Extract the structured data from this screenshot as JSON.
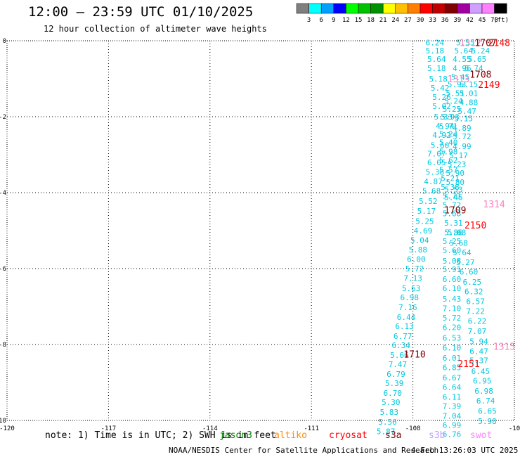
{
  "header": {
    "title": "12:00 – 23:59 UTC 01/10/2025",
    "subtitle": "12 hour collection of altimeter wave heights"
  },
  "color_scale": {
    "labels": [
      "3",
      "6",
      "9",
      "12",
      "15",
      "18",
      "21",
      "24",
      "27",
      "30",
      "33",
      "36",
      "39",
      "42",
      "45",
      "70"
    ],
    "unit": "(ft)",
    "colors": [
      "#7f7f7f",
      "#00ffff",
      "#00a0ff",
      "#0000ff",
      "#00ff00",
      "#00c000",
      "#009000",
      "#ffff00",
      "#ffc000",
      "#ff8000",
      "#ff0000",
      "#c00000",
      "#800000",
      "#a000a0",
      "#d0a0ff",
      "#ff80ff",
      "#000000"
    ]
  },
  "footer": {
    "note": "note: 1) Time is in UTC; 2) SWH is in feet",
    "credit": "NOAA/NESDIS Center for Satellite Applications and Research",
    "generated": "4 Feb 13:26:03 UTC 2025",
    "satellites": [
      {
        "name": "jason3",
        "color": "#008000"
      },
      {
        "name": "altiko",
        "color": "#ff8c00"
      },
      {
        "name": "cryosat",
        "color": "#ff0000"
      },
      {
        "name": "s3a",
        "color": "#800000"
      },
      {
        "name": "s3b",
        "color": "#c0a0ff"
      },
      {
        "name": "swot",
        "color": "#ff80ff"
      }
    ]
  },
  "chart_data": {
    "type": "scatter",
    "title": "12 hour collection of altimeter wave heights",
    "x_ticks": [
      "-120",
      "-117",
      "-114",
      "-111",
      "-108",
      "-10"
    ],
    "y_ticks": [
      "0",
      "-2",
      "-4",
      "-6",
      "-8",
      "-10"
    ],
    "xlim": [
      -120,
      -105
    ],
    "ylim": [
      -10,
      0
    ],
    "grid": true,
    "colors": {
      "track_a": "#00c8e0",
      "track_b": "#00c8e0",
      "track_c": "#00c8e0",
      "swot": "#ff80c0",
      "s3a": "#800000",
      "cryosat": "#ff0000"
    },
    "series": [
      {
        "track": "track_a",
        "points": [
          {
            "x": -107.35,
            "y": -0.05,
            "v": "6.24"
          },
          {
            "x": -107.35,
            "y": -0.26,
            "v": "5.18"
          },
          {
            "x": -107.3,
            "y": -0.48,
            "v": "5.64"
          },
          {
            "x": -107.3,
            "y": -0.72,
            "v": "5.18"
          },
          {
            "x": -107.25,
            "y": -1.0,
            "v": "5.18"
          },
          {
            "x": -107.2,
            "y": -1.24,
            "v": "5.42"
          },
          {
            "x": -107.15,
            "y": -1.48,
            "v": "5.26"
          },
          {
            "x": -107.15,
            "y": -1.72,
            "v": "5.02"
          },
          {
            "x": -107.1,
            "y": -2.0,
            "v": "5.33"
          },
          {
            "x": -107.05,
            "y": -2.24,
            "v": "4.94"
          },
          {
            "x": -107.15,
            "y": -2.48,
            "v": "4.92"
          },
          {
            "x": -107.2,
            "y": -2.75,
            "v": "5.60"
          },
          {
            "x": -107.3,
            "y": -2.97,
            "v": "7.07"
          },
          {
            "x": -107.3,
            "y": -3.2,
            "v": "6.05"
          },
          {
            "x": -107.35,
            "y": -3.45,
            "v": "5.38"
          },
          {
            "x": -107.4,
            "y": -3.7,
            "v": "4.87"
          },
          {
            "x": -107.45,
            "y": -3.95,
            "v": "5.68"
          },
          {
            "x": -107.55,
            "y": -4.22,
            "v": "5.52"
          },
          {
            "x": -107.6,
            "y": -4.48,
            "v": "5.17"
          },
          {
            "x": -107.65,
            "y": -4.75,
            "v": "5.25"
          },
          {
            "x": -107.7,
            "y": -5.0,
            "v": "4.69"
          },
          {
            "x": -107.8,
            "y": -5.25,
            "v": "5.04"
          },
          {
            "x": -107.85,
            "y": -5.5,
            "v": "5.88"
          },
          {
            "x": -107.9,
            "y": -5.75,
            "v": "6.00"
          },
          {
            "x": -107.95,
            "y": -6.0,
            "v": "5.72"
          },
          {
            "x": -108.0,
            "y": -6.25,
            "v": "7.13"
          },
          {
            "x": -108.05,
            "y": -6.52,
            "v": "5.63"
          },
          {
            "x": -108.1,
            "y": -6.76,
            "v": "6.98"
          },
          {
            "x": -108.15,
            "y": -7.02,
            "v": "7.16"
          },
          {
            "x": -108.2,
            "y": -7.28,
            "v": "6.44"
          },
          {
            "x": -108.25,
            "y": -7.52,
            "v": "6.13"
          },
          {
            "x": -108.3,
            "y": -7.78,
            "v": "6.77"
          },
          {
            "x": -108.35,
            "y": -8.02,
            "v": "6.34"
          },
          {
            "x": -108.4,
            "y": -8.28,
            "v": "5.66"
          },
          {
            "x": -108.45,
            "y": -8.52,
            "v": "7.47"
          },
          {
            "x": -108.5,
            "y": -8.78,
            "v": "6.79"
          },
          {
            "x": -108.55,
            "y": -9.02,
            "v": "5.39"
          },
          {
            "x": -108.6,
            "y": -9.28,
            "v": "6.70"
          },
          {
            "x": -108.65,
            "y": -9.52,
            "v": "5.30"
          },
          {
            "x": -108.7,
            "y": -9.78,
            "v": "5.83"
          },
          {
            "x": -108.75,
            "y": -10.04,
            "v": "5.56"
          },
          {
            "x": -108.8,
            "y": -10.29,
            "v": "5.87"
          }
        ]
      },
      {
        "track": "track_b",
        "points": [
          {
            "x": -106.45,
            "y": -0.05,
            "v": "5.55"
          },
          {
            "x": -106.5,
            "y": -0.26,
            "v": "5.64"
          },
          {
            "x": -106.55,
            "y": -0.48,
            "v": "4.55"
          },
          {
            "x": -106.55,
            "y": -0.72,
            "v": "4.96"
          },
          {
            "x": -106.6,
            "y": -0.95,
            "v": "5.45"
          },
          {
            "x": -106.7,
            "y": -1.15,
            "v": "5.93"
          },
          {
            "x": -106.75,
            "y": -1.38,
            "v": "5.51"
          },
          {
            "x": -106.8,
            "y": -1.58,
            "v": "5.24"
          },
          {
            "x": -106.85,
            "y": -1.8,
            "v": "5.25"
          },
          {
            "x": -106.9,
            "y": -2.0,
            "v": "5.93"
          },
          {
            "x": -106.95,
            "y": -2.25,
            "v": "5.71"
          },
          {
            "x": -106.95,
            "y": -2.45,
            "v": "5.24"
          },
          {
            "x": -106.95,
            "y": -2.68,
            "v": "5.40"
          },
          {
            "x": -106.95,
            "y": -2.92,
            "v": "5.98"
          },
          {
            "x": -106.95,
            "y": -3.15,
            "v": "5.62"
          },
          {
            "x": -106.95,
            "y": -3.4,
            "v": "5.57"
          },
          {
            "x": -106.9,
            "y": -3.62,
            "v": "5.21"
          },
          {
            "x": -106.9,
            "y": -3.85,
            "v": "5.38"
          },
          {
            "x": -106.85,
            "y": -4.08,
            "v": "5.71"
          },
          {
            "x": -106.85,
            "y": -4.32,
            "v": "5.72"
          },
          {
            "x": -106.85,
            "y": -4.55,
            "v": "5.68"
          },
          {
            "x": -106.8,
            "y": -4.8,
            "v": "5.31"
          },
          {
            "x": -106.8,
            "y": -5.05,
            "v": "5.86"
          },
          {
            "x": -106.85,
            "y": -5.28,
            "v": "5.25"
          },
          {
            "x": -106.85,
            "y": -5.52,
            "v": "5.60"
          },
          {
            "x": -106.85,
            "y": -5.8,
            "v": "5.08"
          },
          {
            "x": -106.85,
            "y": -6.02,
            "v": "5.91"
          },
          {
            "x": -106.85,
            "y": -6.28,
            "v": "6.60"
          },
          {
            "x": -106.85,
            "y": -6.52,
            "v": "6.10"
          },
          {
            "x": -106.85,
            "y": -6.8,
            "v": "5.43"
          },
          {
            "x": -106.85,
            "y": -7.05,
            "v": "7.10"
          },
          {
            "x": -106.85,
            "y": -7.3,
            "v": "5.72"
          },
          {
            "x": -106.85,
            "y": -7.55,
            "v": "6.20"
          },
          {
            "x": -106.85,
            "y": -7.82,
            "v": "6.53"
          },
          {
            "x": -106.85,
            "y": -8.08,
            "v": "6.10"
          },
          {
            "x": -106.85,
            "y": -8.35,
            "v": "6.01"
          },
          {
            "x": -106.85,
            "y": -8.6,
            "v": "6.85"
          },
          {
            "x": -106.85,
            "y": -8.87,
            "v": "6.67"
          },
          {
            "x": -106.85,
            "y": -9.12,
            "v": "6.64"
          },
          {
            "x": -106.85,
            "y": -9.38,
            "v": "6.11"
          },
          {
            "x": -106.85,
            "y": -9.62,
            "v": "7.39"
          },
          {
            "x": -106.85,
            "y": -9.88,
            "v": "7.04"
          },
          {
            "x": -106.85,
            "y": -10.12,
            "v": "6.99"
          },
          {
            "x": -106.85,
            "y": -10.36,
            "v": "6.76"
          }
        ]
      },
      {
        "track": "track_c",
        "points": [
          {
            "x": -106.0,
            "y": -0.26,
            "v": "5.24"
          },
          {
            "x": -106.1,
            "y": -0.48,
            "v": "5.65"
          },
          {
            "x": -106.2,
            "y": -0.72,
            "v": "5.74"
          },
          {
            "x": -106.35,
            "y": -1.15,
            "v": "5.15"
          },
          {
            "x": -106.35,
            "y": -1.38,
            "v": "5.01"
          },
          {
            "x": -106.35,
            "y": -1.62,
            "v": "4.88"
          },
          {
            "x": -106.4,
            "y": -1.85,
            "v": "5.47"
          },
          {
            "x": -106.5,
            "y": -2.05,
            "v": "5.15"
          },
          {
            "x": -106.55,
            "y": -2.3,
            "v": "4.89"
          },
          {
            "x": -106.55,
            "y": -2.52,
            "v": "5.72"
          },
          {
            "x": -106.55,
            "y": -2.78,
            "v": "4.99"
          },
          {
            "x": -106.65,
            "y": -3.02,
            "v": "5.17"
          },
          {
            "x": -106.7,
            "y": -3.25,
            "v": "5.23"
          },
          {
            "x": -106.75,
            "y": -3.48,
            "v": "5.90"
          },
          {
            "x": -106.75,
            "y": -3.72,
            "v": "5.80"
          },
          {
            "x": -106.8,
            "y": -3.92,
            "v": "5.53"
          },
          {
            "x": -106.8,
            "y": -4.12,
            "v": "5.45"
          },
          {
            "x": -106.7,
            "y": -5.05,
            "v": "5.68"
          },
          {
            "x": -106.65,
            "y": -5.32,
            "v": "5.68"
          },
          {
            "x": -106.55,
            "y": -5.57,
            "v": "5.64"
          },
          {
            "x": -106.45,
            "y": -5.83,
            "v": "5.27"
          },
          {
            "x": -106.35,
            "y": -6.08,
            "v": "6.60"
          },
          {
            "x": -106.25,
            "y": -6.35,
            "v": "6.25"
          },
          {
            "x": -106.2,
            "y": -6.6,
            "v": "6.32"
          },
          {
            "x": -106.15,
            "y": -6.86,
            "v": "6.57"
          },
          {
            "x": -106.15,
            "y": -7.12,
            "v": "7.22"
          },
          {
            "x": -106.1,
            "y": -7.38,
            "v": "6.22"
          },
          {
            "x": -106.1,
            "y": -7.65,
            "v": "7.07"
          },
          {
            "x": -106.05,
            "y": -7.92,
            "v": "5.94"
          },
          {
            "x": -106.05,
            "y": -8.18,
            "v": "6.47"
          },
          {
            "x": -106.05,
            "y": -8.42,
            "v": "5.37"
          },
          {
            "x": -106.0,
            "y": -8.7,
            "v": "6.45"
          },
          {
            "x": -105.95,
            "y": -8.95,
            "v": "6.95"
          },
          {
            "x": -105.9,
            "y": -9.22,
            "v": "6.98"
          },
          {
            "x": -105.85,
            "y": -9.48,
            "v": "6.74"
          },
          {
            "x": -105.8,
            "y": -9.75,
            "v": "6.65"
          },
          {
            "x": -105.8,
            "y": -10.02,
            "v": "5.98"
          }
        ]
      }
    ],
    "time_labels": [
      {
        "x": -106.3,
        "y": -0.05,
        "v": "1312",
        "sat": "swot"
      },
      {
        "x": -105.85,
        "y": -0.05,
        "v": "1707",
        "sat": "s3a"
      },
      {
        "x": -105.45,
        "y": -0.05,
        "v": "2148",
        "sat": "cryosat"
      },
      {
        "x": -106.65,
        "y": -1.0,
        "v": "1313",
        "sat": "swot"
      },
      {
        "x": -106.0,
        "y": -0.88,
        "v": "1708",
        "sat": "s3a"
      },
      {
        "x": -105.75,
        "y": -1.15,
        "v": "2149",
        "sat": "cryosat"
      },
      {
        "x": -105.6,
        "y": -4.3,
        "v": "1314",
        "sat": "swot"
      },
      {
        "x": -106.75,
        "y": -4.45,
        "v": "1709",
        "sat": "s3a"
      },
      {
        "x": -106.15,
        "y": -4.85,
        "v": "2150",
        "sat": "cryosat"
      },
      {
        "x": -105.3,
        "y": -8.05,
        "v": "1315",
        "sat": "swot"
      },
      {
        "x": -107.95,
        "y": -8.25,
        "v": "1710",
        "sat": "s3a"
      },
      {
        "x": -106.35,
        "y": -8.5,
        "v": "2151",
        "sat": "cryosat"
      }
    ]
  }
}
